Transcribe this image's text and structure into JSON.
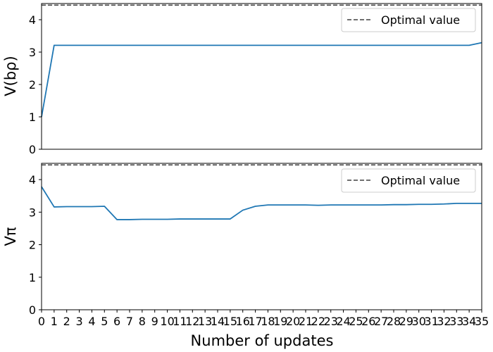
{
  "chart_data": [
    {
      "type": "line",
      "ylabel": "V(bρ)",
      "xlabel": "",
      "xlim": [
        0,
        35
      ],
      "ylim": [
        0,
        4.5
      ],
      "yticks": [
        0,
        1,
        2,
        3,
        4
      ],
      "show_x_ticks": false,
      "grid": false,
      "legend": {
        "placement": "top-right",
        "entries": [
          "Optimal value"
        ]
      },
      "reference_line": {
        "name": "Optimal value",
        "value": 4.45,
        "style": "dashed",
        "color": "#404040"
      },
      "series": [
        {
          "color": "#1f77b4",
          "x": [
            0,
            1,
            2,
            3,
            4,
            5,
            6,
            7,
            8,
            9,
            10,
            11,
            12,
            13,
            14,
            15,
            16,
            17,
            18,
            19,
            20,
            21,
            22,
            23,
            24,
            25,
            26,
            27,
            28,
            29,
            30,
            31,
            32,
            33,
            34,
            35
          ],
          "values": [
            1.0,
            3.21,
            3.21,
            3.21,
            3.21,
            3.21,
            3.21,
            3.21,
            3.21,
            3.21,
            3.21,
            3.21,
            3.21,
            3.21,
            3.21,
            3.21,
            3.21,
            3.21,
            3.21,
            3.21,
            3.21,
            3.21,
            3.21,
            3.21,
            3.21,
            3.21,
            3.21,
            3.21,
            3.21,
            3.21,
            3.21,
            3.21,
            3.21,
            3.21,
            3.21,
            3.29
          ]
        }
      ]
    },
    {
      "type": "line",
      "ylabel": "Vπ",
      "xlabel": "Number of updates",
      "xlim": [
        0,
        35
      ],
      "ylim": [
        0,
        4.5
      ],
      "yticks": [
        0,
        1,
        2,
        3,
        4
      ],
      "xticks": [
        0,
        1,
        2,
        3,
        4,
        5,
        6,
        7,
        8,
        9,
        10,
        11,
        12,
        13,
        14,
        15,
        16,
        17,
        18,
        19,
        20,
        21,
        22,
        23,
        24,
        25,
        26,
        27,
        28,
        29,
        30,
        31,
        32,
        33,
        34,
        35
      ],
      "show_x_ticks": true,
      "grid": false,
      "legend": {
        "placement": "top-right",
        "entries": [
          "Optimal value"
        ]
      },
      "reference_line": {
        "name": "Optimal value",
        "value": 4.45,
        "style": "dashed",
        "color": "#404040"
      },
      "series": [
        {
          "color": "#1f77b4",
          "x": [
            0,
            1,
            2,
            3,
            4,
            5,
            6,
            7,
            8,
            9,
            10,
            11,
            12,
            13,
            14,
            15,
            16,
            17,
            18,
            19,
            20,
            21,
            22,
            23,
            24,
            25,
            26,
            27,
            28,
            29,
            30,
            31,
            32,
            33,
            34,
            35
          ],
          "values": [
            3.78,
            3.16,
            3.17,
            3.17,
            3.17,
            3.18,
            2.77,
            2.77,
            2.78,
            2.78,
            2.78,
            2.79,
            2.79,
            2.79,
            2.79,
            2.79,
            3.06,
            3.18,
            3.22,
            3.22,
            3.22,
            3.22,
            3.21,
            3.22,
            3.22,
            3.22,
            3.22,
            3.22,
            3.23,
            3.23,
            3.24,
            3.24,
            3.25,
            3.27,
            3.27,
            3.27
          ]
        }
      ]
    }
  ]
}
